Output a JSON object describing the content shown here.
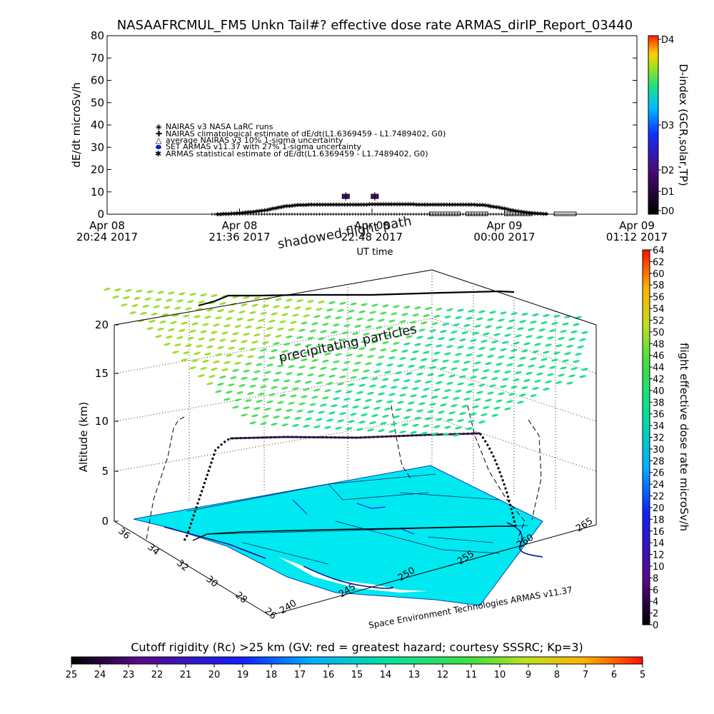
{
  "title": "NASAAFRCMUL_FM5 Unkn Tail#? effective dose rate ARMAS_dirIP_Report_03440",
  "chart_data": [
    {
      "id": "dose-timeseries",
      "type": "scatter",
      "ylabel": "dE/dt microSv/h",
      "xlabel": "UT time",
      "ylim": [
        0,
        80
      ],
      "yticks": [
        0,
        10,
        20,
        30,
        40,
        50,
        60,
        70,
        80
      ],
      "xticks": [
        {
          "line1": "Apr 08",
          "line2": "20:24 2017"
        },
        {
          "line1": "Apr 08",
          "line2": "21:36 2017"
        },
        {
          "line1": "Apr 08",
          "line2": "22:48 2017"
        },
        {
          "line1": "Apr 09",
          "line2": "00:00 2017"
        },
        {
          "line1": "Apr 09",
          "line2": "01:12 2017"
        }
      ],
      "legend": [
        "NAIRAS v3 NASA LaRC runs",
        "NAIRAS climatological estimate of dE/dt(L1.6369459 - L1.7489402, G0)",
        "average NAIRAS v3 10% 1-sigma uncertainty",
        "SET ARMAS v11.37 with 27% 1-sigma uncertainty",
        "ARMAS statistical estimate of dE/dt(L1.6369459 - L1.7489402, G0)"
      ],
      "series": [
        {
          "x_hours": [
            0.0,
            0.2,
            0.4,
            0.6,
            0.8,
            1.0,
            1.2,
            1.4,
            1.6,
            1.8,
            2.0,
            2.2,
            2.4,
            2.6,
            2.8,
            3.0,
            3.2,
            3.4,
            3.6,
            3.8,
            4.0
          ],
          "values": [
            0.0,
            0.3,
            1.0,
            2.0,
            3.5,
            4.2,
            4.3,
            4.3,
            4.4,
            4.4,
            4.5,
            4.5,
            4.4,
            4.4,
            4.3,
            4.3,
            4.2,
            3.0,
            1.5,
            0.5,
            0.0
          ]
        }
      ],
      "armas_points": [
        {
          "x_hours": 1.55,
          "value": 8
        },
        {
          "x_hours": 1.9,
          "value": 8
        }
      ],
      "color_axis": {
        "label": "D-index (GCR,solar,TP)",
        "ticks": [
          "D0",
          "D1",
          "D2",
          "D3",
          "D4"
        ]
      }
    },
    {
      "id": "flight-3d",
      "type": "scatter",
      "ylabel": "Altitude (km)",
      "zticks": [
        0,
        5,
        10,
        15,
        20
      ],
      "lat_ticks": [
        36,
        34,
        32,
        30,
        28,
        26
      ],
      "lon_ticks": [
        240,
        245,
        250,
        255,
        260,
        265
      ],
      "annotations": [
        "shadowed flight path",
        "precipitating particles"
      ],
      "credit": "Space Environment Technologies ARMAS v11.37",
      "colorbar_right": {
        "label": "flight effective dose rate microSv/h",
        "ticks": [
          0,
          2,
          4,
          6,
          8,
          10,
          12,
          14,
          16,
          18,
          20,
          22,
          24,
          26,
          28,
          30,
          32,
          34,
          36,
          38,
          40,
          42,
          44,
          46,
          48,
          50,
          52,
          54,
          56,
          58,
          60,
          62,
          64
        ]
      },
      "colorbar_bottom": {
        "label": "Cutoff rigidity (Rc) >25 km (GV: red = greatest hazard; courtesy SSSRC; Kp=3)",
        "ticks": [
          25,
          24,
          23,
          22,
          21,
          20,
          19,
          18,
          17,
          16,
          15,
          14,
          13,
          12,
          11,
          10,
          9,
          8,
          7,
          6,
          5
        ]
      }
    }
  ]
}
